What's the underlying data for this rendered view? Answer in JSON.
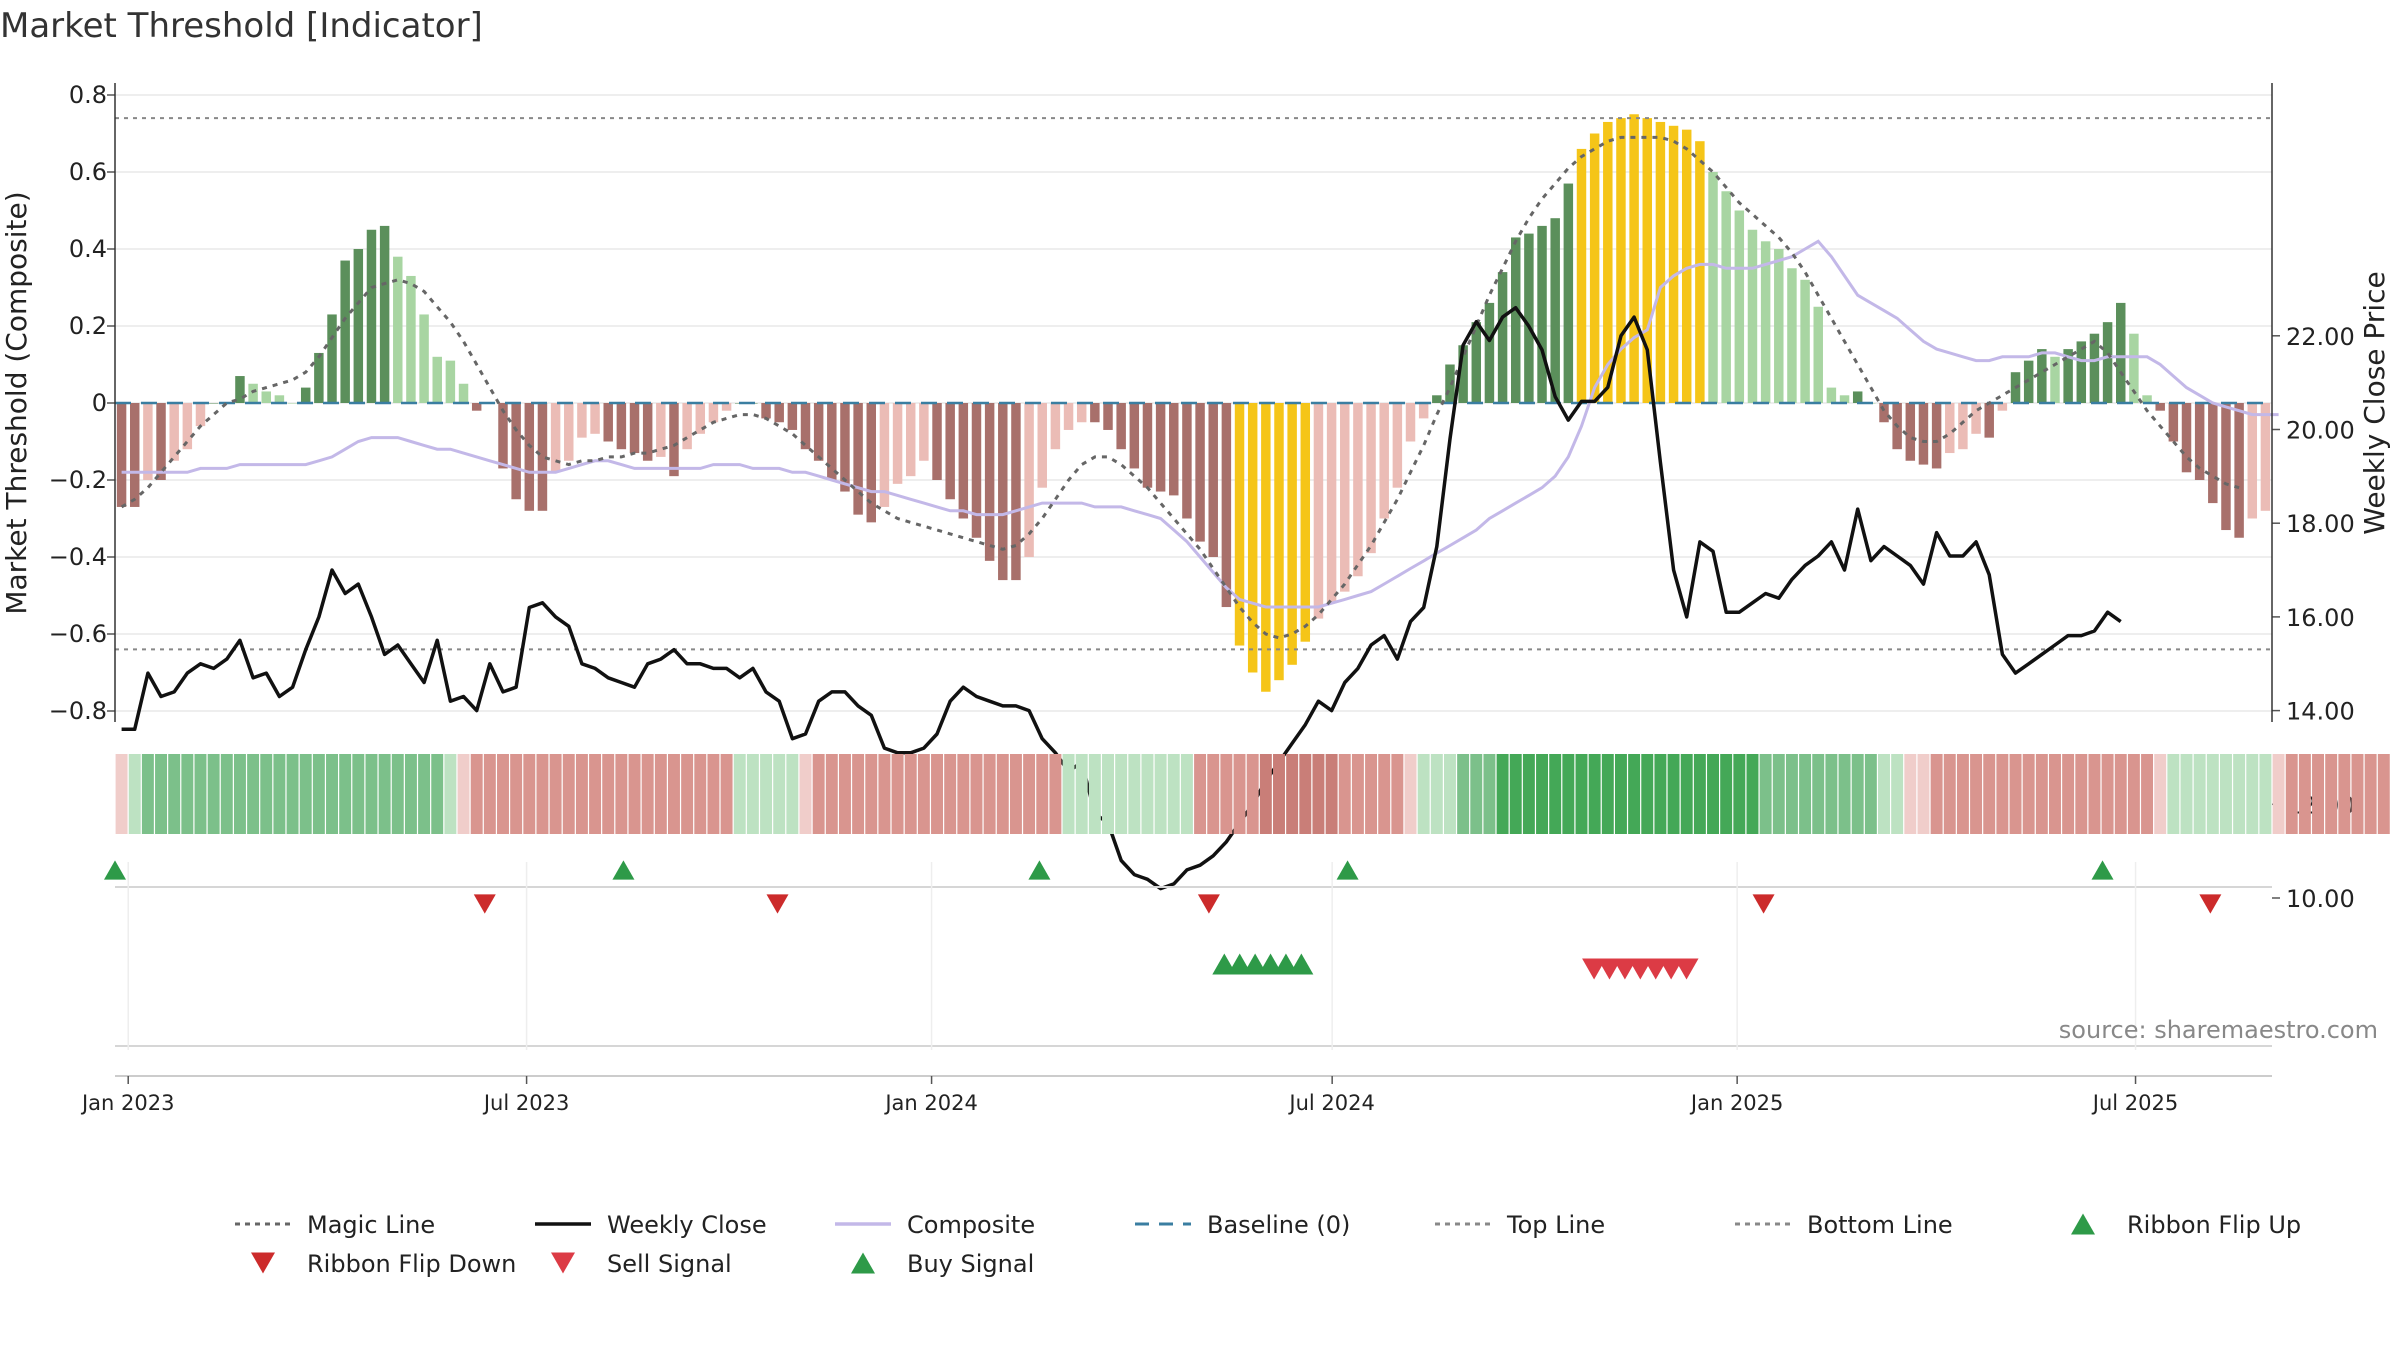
{
  "chart_data": {
    "type": "bar",
    "title": "Market Threshold [Indicator]",
    "ylabel": "Market Threshold (Composite)",
    "y2label": "Weekly Close Price",
    "ylim": [
      -0.8,
      0.8
    ],
    "y2lim": [
      10.0,
      22.0
    ],
    "yticks": [
      "0.8",
      "0.6",
      "0.4",
      "0.2",
      "0",
      "−0.2",
      "−0.4",
      "−0.6",
      "−0.8"
    ],
    "y2ticks": [
      "22.00",
      "20.00",
      "18.00",
      "16.00",
      "14.00",
      "12.00",
      "10.00"
    ],
    "xticks": [
      "Jan 2023",
      "Jul 2023",
      "Jan 2024",
      "Jul 2024",
      "Jan 2025",
      "Jul 2025"
    ],
    "x_start": "2022-12-26",
    "x_end": "2025-09-01",
    "top_line": 0.74,
    "bottom_line": -0.64,
    "grid": true,
    "source_text": "source: sharemaestro.com",
    "colors": {
      "bull_strong": "#5b8f5b",
      "bull_weak": "#a8d5a2",
      "bear_strong": "#a8706b",
      "bear_weak": "#ebbcb6",
      "extreme": "#f5c518",
      "close": "#111111",
      "composite": "#c3b8e8",
      "magic": "#666666",
      "baseline": "#3a7ea1",
      "buy": "#2e9a48",
      "sell": "#dc3b45",
      "flip_up": "#2e9a48",
      "flip_down": "#cc2b2b"
    },
    "composite_bars": [
      -0.27,
      -0.27,
      -0.2,
      -0.2,
      -0.15,
      -0.12,
      -0.06,
      0,
      0,
      0.07,
      0.05,
      0.03,
      0.02,
      0,
      0.04,
      0.13,
      0.23,
      0.37,
      0.4,
      0.45,
      0.46,
      0.38,
      0.33,
      0.23,
      0.12,
      0.11,
      0.05,
      -0.02,
      0,
      -0.17,
      -0.25,
      -0.28,
      -0.28,
      -0.18,
      -0.15,
      -0.09,
      -0.08,
      -0.1,
      -0.12,
      -0.13,
      -0.15,
      -0.14,
      -0.19,
      -0.12,
      -0.08,
      -0.05,
      -0.02,
      0,
      0,
      -0.04,
      -0.05,
      -0.07,
      -0.12,
      -0.15,
      -0.2,
      -0.23,
      -0.29,
      -0.31,
      -0.27,
      -0.21,
      -0.19,
      -0.15,
      -0.2,
      -0.25,
      -0.3,
      -0.35,
      -0.41,
      -0.46,
      -0.46,
      -0.4,
      -0.22,
      -0.12,
      -0.07,
      -0.05,
      -0.05,
      -0.07,
      -0.12,
      -0.17,
      -0.22,
      -0.23,
      -0.24,
      -0.3,
      -0.36,
      -0.4,
      -0.53,
      -0.63,
      -0.7,
      -0.75,
      -0.72,
      -0.68,
      -0.62,
      -0.56,
      -0.52,
      -0.49,
      -0.45,
      -0.39,
      -0.3,
      -0.22,
      -0.1,
      -0.04,
      0.02,
      0.1,
      0.15,
      0.21,
      0.26,
      0.34,
      0.43,
      0.44,
      0.46,
      0.48,
      0.57,
      0.66,
      0.7,
      0.73,
      0.74,
      0.75,
      0.74,
      0.73,
      0.72,
      0.71,
      0.68,
      0.6,
      0.55,
      0.5,
      0.45,
      0.42,
      0.4,
      0.35,
      0.32,
      0.25,
      0.04,
      0.02,
      0.03,
      0,
      -0.05,
      -0.12,
      -0.15,
      -0.16,
      -0.17,
      -0.13,
      -0.12,
      -0.08,
      -0.09,
      -0.02,
      0.08,
      0.11,
      0.14,
      0.12,
      0.14,
      0.16,
      0.18,
      0.21,
      0.26,
      0.18,
      0.02,
      -0.02,
      -0.1,
      -0.18,
      -0.2,
      -0.26,
      -0.33,
      -0.35,
      -0.3,
      -0.28
    ],
    "magic_line": [
      -0.27,
      -0.25,
      -0.22,
      -0.18,
      -0.14,
      -0.1,
      -0.06,
      -0.03,
      0,
      0.01,
      0.03,
      0.04,
      0.05,
      0.06,
      0.08,
      0.12,
      0.17,
      0.22,
      0.26,
      0.3,
      0.31,
      0.32,
      0.31,
      0.29,
      0.25,
      0.21,
      0.16,
      0.1,
      0.04,
      -0.02,
      -0.07,
      -0.11,
      -0.14,
      -0.15,
      -0.16,
      -0.15,
      -0.15,
      -0.14,
      -0.14,
      -0.13,
      -0.13,
      -0.12,
      -0.11,
      -0.09,
      -0.07,
      -0.05,
      -0.04,
      -0.03,
      -0.03,
      -0.04,
      -0.06,
      -0.08,
      -0.11,
      -0.14,
      -0.17,
      -0.2,
      -0.23,
      -0.26,
      -0.28,
      -0.3,
      -0.31,
      -0.32,
      -0.33,
      -0.34,
      -0.35,
      -0.36,
      -0.37,
      -0.38,
      -0.37,
      -0.34,
      -0.3,
      -0.25,
      -0.2,
      -0.16,
      -0.14,
      -0.14,
      -0.16,
      -0.19,
      -0.22,
      -0.26,
      -0.3,
      -0.34,
      -0.38,
      -0.43,
      -0.48,
      -0.53,
      -0.57,
      -0.6,
      -0.61,
      -0.6,
      -0.58,
      -0.55,
      -0.51,
      -0.47,
      -0.42,
      -0.37,
      -0.31,
      -0.25,
      -0.18,
      -0.11,
      -0.03,
      0.04,
      0.12,
      0.2,
      0.28,
      0.35,
      0.42,
      0.48,
      0.53,
      0.57,
      0.61,
      0.64,
      0.66,
      0.68,
      0.69,
      0.69,
      0.69,
      0.69,
      0.68,
      0.66,
      0.63,
      0.6,
      0.56,
      0.52,
      0.49,
      0.46,
      0.43,
      0.39,
      0.34,
      0.28,
      0.22,
      0.16,
      0.1,
      0.04,
      -0.02,
      -0.06,
      -0.09,
      -0.1,
      -0.1,
      -0.08,
      -0.05,
      -0.02,
      0,
      0.02,
      0.04,
      0.06,
      0.08,
      0.1,
      0.12,
      0.14,
      0.16,
      0.13,
      0.08,
      0.03,
      -0.02,
      -0.06,
      -0.1,
      -0.14,
      -0.17,
      -0.19,
      -0.21,
      -0.22
    ],
    "composite_line": [
      -0.18,
      -0.18,
      -0.18,
      -0.18,
      -0.18,
      -0.18,
      -0.17,
      -0.17,
      -0.17,
      -0.16,
      -0.16,
      -0.16,
      -0.16,
      -0.16,
      -0.16,
      -0.15,
      -0.14,
      -0.12,
      -0.1,
      -0.09,
      -0.09,
      -0.09,
      -0.1,
      -0.11,
      -0.12,
      -0.12,
      -0.13,
      -0.14,
      -0.15,
      -0.16,
      -0.17,
      -0.18,
      -0.18,
      -0.18,
      -0.17,
      -0.16,
      -0.15,
      -0.15,
      -0.16,
      -0.17,
      -0.17,
      -0.17,
      -0.17,
      -0.17,
      -0.17,
      -0.16,
      -0.16,
      -0.16,
      -0.17,
      -0.17,
      -0.17,
      -0.18,
      -0.18,
      -0.19,
      -0.2,
      -0.21,
      -0.22,
      -0.23,
      -0.23,
      -0.24,
      -0.25,
      -0.26,
      -0.27,
      -0.28,
      -0.28,
      -0.29,
      -0.29,
      -0.29,
      -0.28,
      -0.27,
      -0.26,
      -0.26,
      -0.26,
      -0.26,
      -0.27,
      -0.27,
      -0.27,
      -0.28,
      -0.29,
      -0.3,
      -0.33,
      -0.36,
      -0.4,
      -0.44,
      -0.48,
      -0.51,
      -0.52,
      -0.53,
      -0.53,
      -0.53,
      -0.53,
      -0.53,
      -0.52,
      -0.51,
      -0.5,
      -0.49,
      -0.47,
      -0.45,
      -0.43,
      -0.41,
      -0.39,
      -0.37,
      -0.35,
      -0.33,
      -0.3,
      -0.28,
      -0.26,
      -0.24,
      -0.22,
      -0.19,
      -0.14,
      -0.06,
      0.04,
      0.1,
      0.14,
      0.17,
      0.19,
      0.3,
      0.33,
      0.35,
      0.36,
      0.36,
      0.35,
      0.35,
      0.35,
      0.36,
      0.37,
      0.38,
      0.4,
      0.42,
      0.38,
      0.33,
      0.28,
      0.26,
      0.24,
      0.22,
      0.19,
      0.16,
      0.14,
      0.13,
      0.12,
      0.11,
      0.11,
      0.12,
      0.12,
      0.12,
      0.13,
      0.13,
      0.12,
      0.11,
      0.11,
      0.12,
      0.12,
      0.12,
      0.12,
      0.1,
      0.07,
      0.04,
      0.02,
      0.0,
      -0.01,
      -0.02,
      -0.03,
      -0.03,
      -0.03
    ],
    "weekly_close": [
      13.6,
      13.6,
      14.8,
      14.3,
      14.4,
      14.8,
      15.0,
      14.9,
      15.1,
      15.5,
      14.7,
      14.8,
      14.3,
      14.5,
      15.3,
      16.0,
      17.0,
      16.5,
      16.7,
      16.0,
      15.2,
      15.4,
      15.0,
      14.6,
      15.5,
      14.2,
      14.3,
      14.0,
      15.0,
      14.4,
      14.5,
      16.2,
      16.3,
      16.0,
      15.8,
      15.0,
      14.9,
      14.7,
      14.6,
      14.5,
      15.0,
      15.1,
      15.3,
      15.0,
      15.0,
      14.9,
      14.9,
      14.7,
      14.9,
      14.4,
      14.2,
      13.4,
      13.5,
      14.2,
      14.4,
      14.4,
      14.1,
      13.9,
      13.2,
      13.1,
      13.1,
      13.2,
      13.5,
      14.2,
      14.5,
      14.3,
      14.2,
      14.1,
      14.1,
      14.0,
      13.4,
      13.1,
      12.7,
      12.9,
      11.8,
      11.6,
      10.8,
      10.5,
      10.4,
      10.2,
      10.3,
      10.6,
      10.7,
      10.9,
      11.2,
      11.6,
      12.0,
      12.5,
      12.9,
      13.3,
      13.7,
      14.2,
      14.0,
      14.6,
      14.9,
      15.4,
      15.6,
      15.1,
      15.9,
      16.2,
      17.5,
      19.8,
      21.8,
      22.3,
      21.9,
      22.4,
      22.6,
      22.2,
      21.7,
      20.7,
      20.2,
      20.6,
      20.6,
      20.9,
      22.0,
      22.4,
      21.7,
      19.3,
      17.0,
      16.0,
      17.6,
      17.4,
      16.1,
      16.1,
      16.3,
      16.5,
      16.4,
      16.8,
      17.1,
      17.3,
      17.6,
      17.0,
      18.3,
      17.2,
      17.5,
      17.3,
      17.1,
      16.7,
      17.8,
      17.3,
      17.3,
      17.6,
      16.9,
      15.2,
      14.8,
      15.0,
      15.2,
      15.4,
      15.6,
      15.6,
      15.7,
      16.1,
      15.9
    ],
    "ribbon_strength": [
      -1,
      1,
      2,
      2,
      2,
      2,
      2,
      2,
      2,
      2,
      2,
      2,
      2,
      2,
      2,
      2,
      2,
      2,
      2,
      2,
      2,
      2,
      2,
      2,
      2,
      1,
      -1,
      -2,
      -2,
      -2,
      -2,
      -2,
      -2,
      -2,
      -2,
      -2,
      -2,
      -2,
      -2,
      -2,
      -2,
      -2,
      -2,
      -2,
      -2,
      -2,
      -2,
      1,
      1,
      1,
      1,
      1,
      -1,
      -2,
      -2,
      -2,
      -2,
      -2,
      -2,
      -2,
      -2,
      -2,
      -2,
      -2,
      -2,
      -2,
      -2,
      -2,
      -2,
      -2,
      -2,
      -2,
      1,
      1,
      1,
      1,
      1,
      1,
      1,
      1,
      1,
      1,
      -2,
      -2,
      -2,
      -2,
      -2,
      -3,
      -3,
      -3,
      -3,
      -3,
      -3,
      -2,
      -2,
      -2,
      -2,
      -2,
      -1,
      1,
      1,
      1,
      2,
      2,
      2,
      3,
      3,
      3,
      3,
      3,
      3,
      3,
      3,
      3,
      3,
      3,
      3,
      3,
      3,
      3,
      3,
      3,
      3,
      3,
      3,
      2,
      2,
      2,
      2,
      2,
      2,
      2,
      2,
      2,
      1,
      1,
      -1,
      -1,
      -2,
      -2,
      -2,
      -2,
      -2,
      -2,
      -2,
      -2,
      -2,
      -2,
      -2,
      -2,
      -2,
      -2,
      -2,
      -2,
      -2,
      -1,
      1,
      1,
      1,
      1,
      1,
      1,
      1,
      1,
      -1,
      -2,
      -2,
      -2,
      -2,
      -2,
      -2,
      -2,
      -2
    ],
    "ribbon_flip_up": [
      "2022-12-26",
      "2023-08-14",
      "2024-02-19",
      "2024-07-08",
      "2025-06-16"
    ],
    "ribbon_flip_down": [
      "2023-06-12",
      "2023-10-23",
      "2024-05-06",
      "2025-01-13",
      "2025-08-04"
    ],
    "buy_signals": [
      "2024-05-13",
      "2024-05-20",
      "2024-05-27",
      "2024-06-03",
      "2024-06-10",
      "2024-06-17"
    ],
    "sell_signals": [
      "2024-10-28",
      "2024-11-04",
      "2024-11-11",
      "2024-11-18",
      "2024-11-25",
      "2024-12-02",
      "2024-12-09"
    ],
    "legend": [
      {
        "label": "Magic Line",
        "icon": "dotted-line"
      },
      {
        "label": "Weekly Close",
        "icon": "solid-line"
      },
      {
        "label": "Composite",
        "icon": "solid-line"
      },
      {
        "label": "Baseline (0)",
        "icon": "dashed-line"
      },
      {
        "label": "Top Line",
        "icon": "dotted-line"
      },
      {
        "label": "Bottom Line",
        "icon": "dotted-line"
      },
      {
        "label": "Ribbon Flip Up",
        "icon": "triangle-up"
      },
      {
        "label": "Ribbon Flip Down",
        "icon": "triangle-down"
      },
      {
        "label": "Sell Signal",
        "icon": "triangle-down"
      },
      {
        "label": "Buy Signal",
        "icon": "triangle-up"
      }
    ]
  }
}
